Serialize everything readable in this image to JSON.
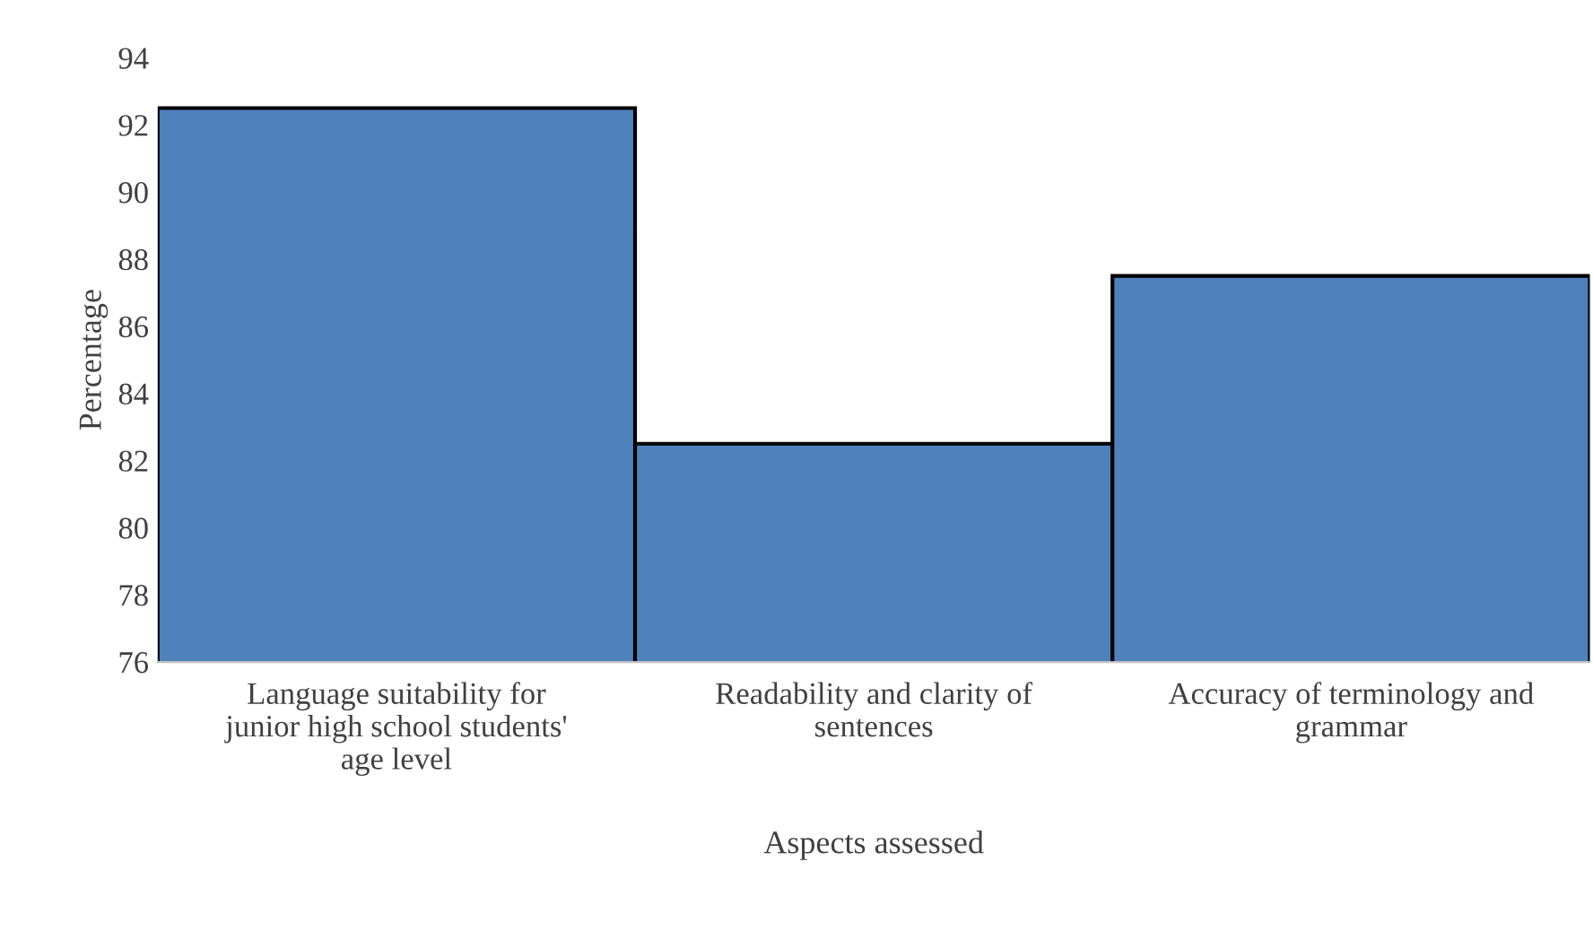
{
  "chart_data": {
    "type": "bar",
    "categories": [
      "Language suitability for junior high school students' age level",
      "Readability and clarity of sentences",
      "Accuracy of terminology and grammar"
    ],
    "values": [
      92.5,
      82.5,
      87.5
    ],
    "color": "#4f81bd",
    "xlabel": "Aspects assessed",
    "ylabel": "Percentage",
    "ylim": [
      76,
      94
    ],
    "yticks": [
      76,
      78,
      80,
      82,
      84,
      86,
      88,
      90,
      92,
      94
    ],
    "grid": false
  }
}
